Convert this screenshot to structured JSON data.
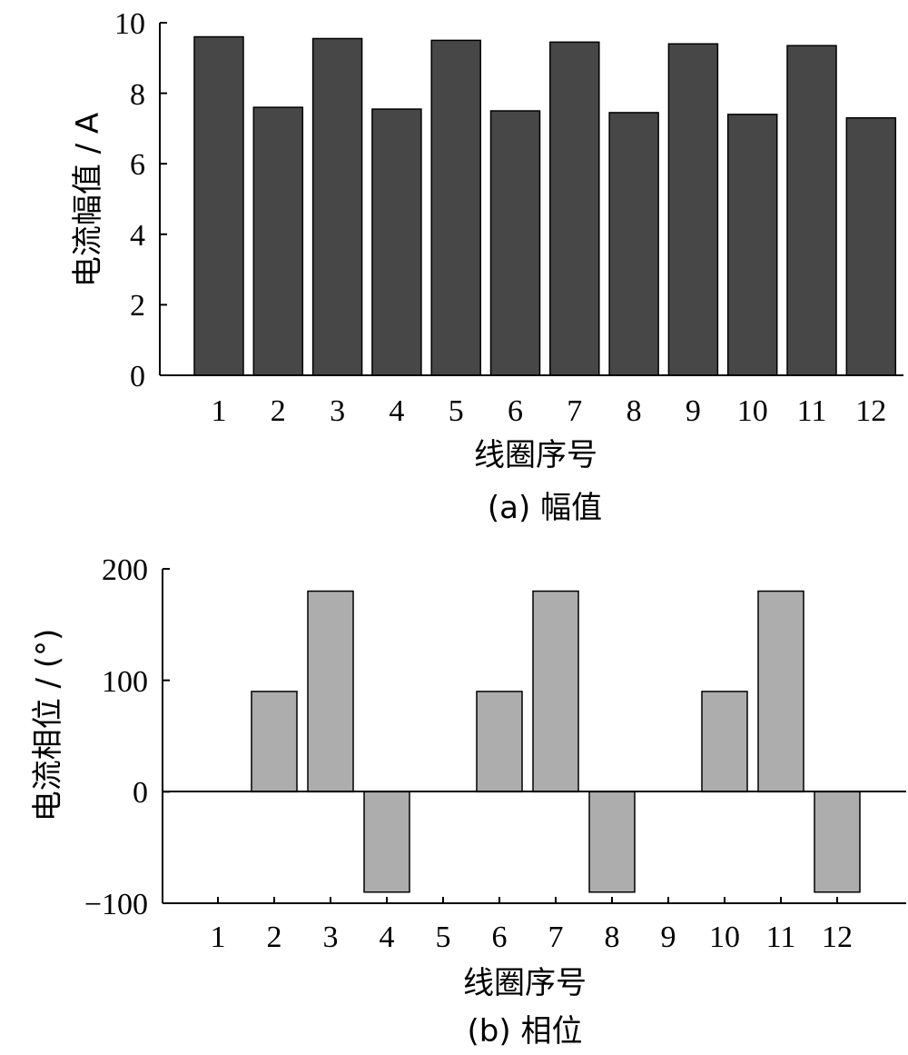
{
  "chart_data": [
    {
      "type": "bar",
      "categories": [
        "1",
        "2",
        "3",
        "4",
        "5",
        "6",
        "7",
        "8",
        "9",
        "10",
        "11",
        "12"
      ],
      "values": [
        9.6,
        7.6,
        9.55,
        7.55,
        9.5,
        7.5,
        9.45,
        7.45,
        9.4,
        7.4,
        9.35,
        7.3
      ],
      "xlabel": "线圈序号",
      "ylabel": "电流幅值 / A",
      "caption": "(a)  幅值",
      "ylim": [
        0,
        10
      ],
      "yticks": [
        "0",
        "2",
        "4",
        "6",
        "8",
        "10"
      ],
      "bar_color": "#474747",
      "grid": false
    },
    {
      "type": "bar",
      "categories": [
        "1",
        "2",
        "3",
        "4",
        "5",
        "6",
        "7",
        "8",
        "9",
        "10",
        "11",
        "12"
      ],
      "values": [
        0,
        90,
        180,
        -90,
        0,
        90,
        180,
        -90,
        0,
        90,
        180,
        -90
      ],
      "xlabel": "线圈序号",
      "ylabel": "电流相位 / (°)",
      "caption": "(b)  相位",
      "ylim": [
        -100,
        200
      ],
      "yticks": [
        "−100",
        "0",
        "100",
        "200"
      ],
      "bar_color": "#adadad",
      "grid": false
    }
  ]
}
